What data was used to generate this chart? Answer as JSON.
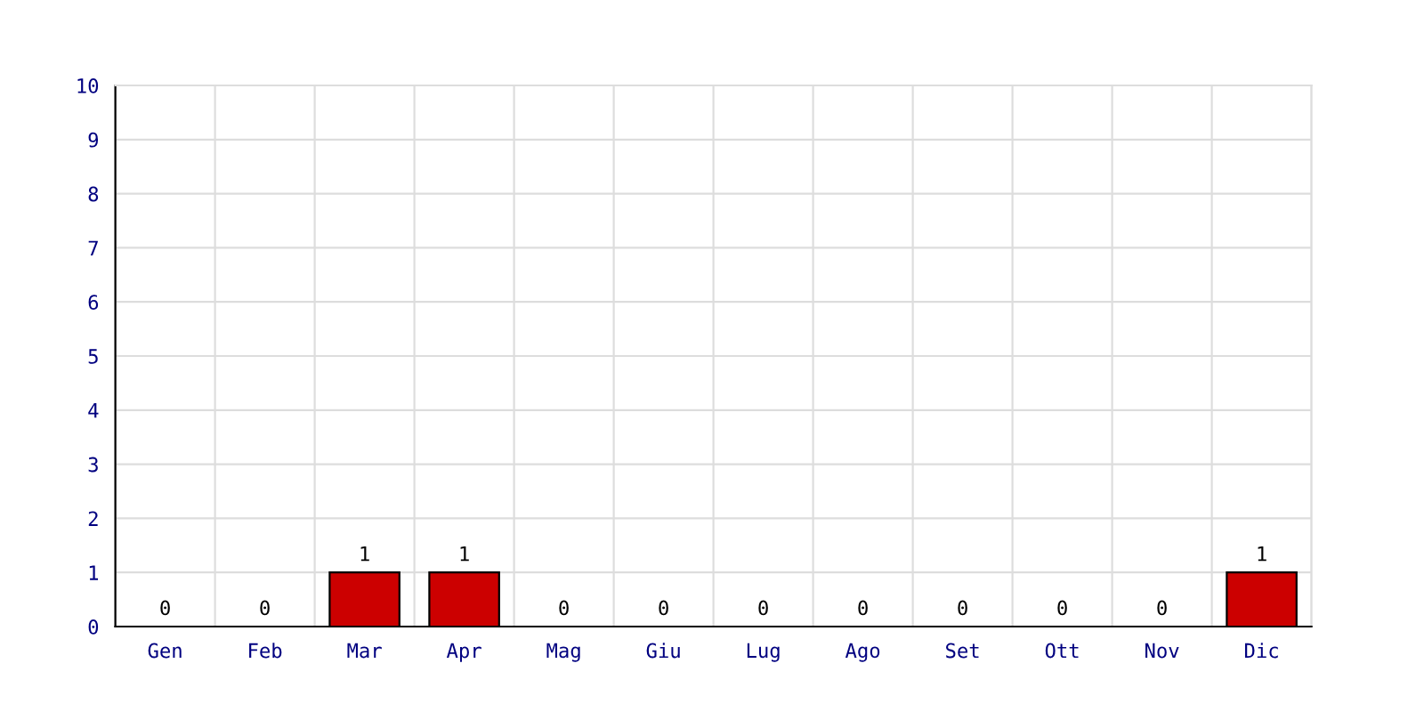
{
  "chart_data": {
    "type": "bar",
    "categories": [
      "Gen",
      "Feb",
      "Mar",
      "Apr",
      "Mag",
      "Giu",
      "Lug",
      "Ago",
      "Set",
      "Ott",
      "Nov",
      "Dic"
    ],
    "values": [
      0,
      0,
      1,
      1,
      0,
      0,
      0,
      0,
      0,
      0,
      0,
      1
    ],
    "color": "#cc0000",
    "ylim": [
      0,
      10
    ],
    "yticks": [
      0,
      1,
      2,
      3,
      4,
      5,
      6,
      7,
      8,
      9,
      10
    ],
    "grid": true,
    "data_labels": true
  }
}
